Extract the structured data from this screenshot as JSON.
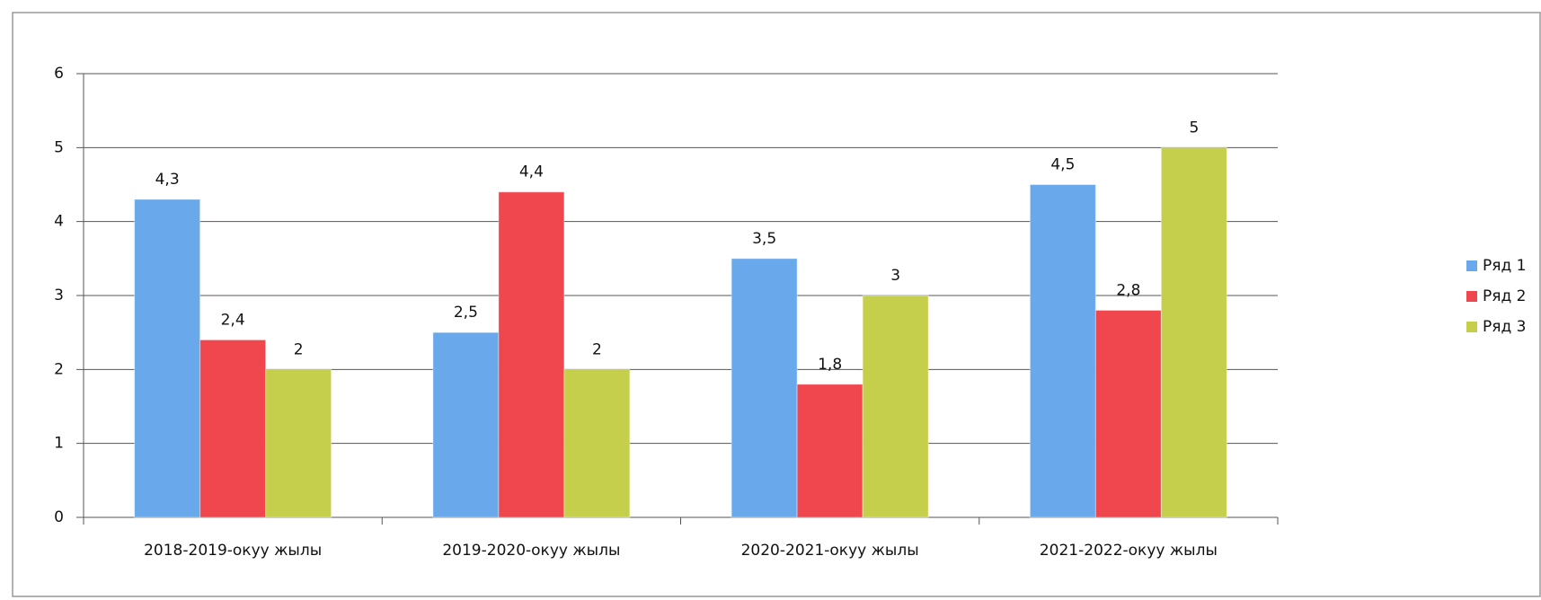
{
  "chart_data": {
    "type": "bar",
    "categories": [
      "2018-2019-окуу жылы",
      "2019-2020-окуу жылы",
      "2020-2021-окуу жылы",
      "2021-2022-окуу жылы"
    ],
    "series": [
      {
        "name": "Ряд 1",
        "color": "#6aa8ec",
        "values": [
          4.3,
          2.5,
          3.5,
          4.5
        ],
        "value_labels": [
          "4,3",
          "2,5",
          "3,5",
          "4,5"
        ]
      },
      {
        "name": "Ряд 2",
        "color": "#f0474f",
        "values": [
          2.4,
          4.4,
          1.8,
          2.8
        ],
        "value_labels": [
          "2,4",
          "4,4",
          "1,8",
          "2,8"
        ]
      },
      {
        "name": "Ряд 3",
        "color": "#c6cf4c",
        "values": [
          2,
          2,
          3,
          5
        ],
        "value_labels": [
          "2",
          "2",
          "3",
          "5"
        ]
      }
    ],
    "ylim": [
      0,
      6
    ],
    "yticks": [
      0,
      1,
      2,
      3,
      4,
      5,
      6
    ],
    "grid": true,
    "legend": "right"
  }
}
